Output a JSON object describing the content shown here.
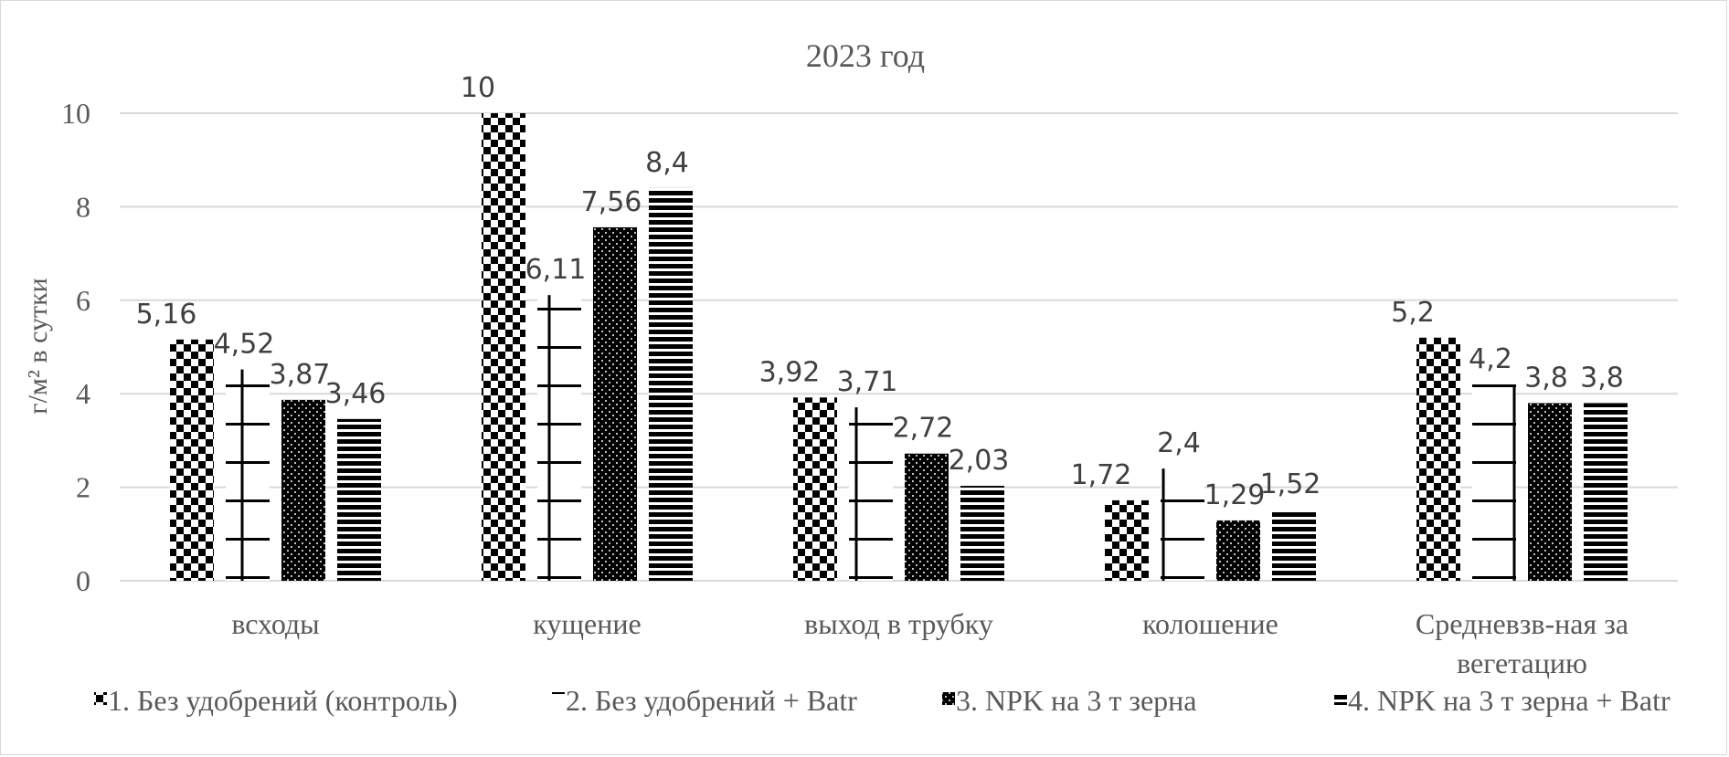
{
  "chart_data": {
    "type": "bar",
    "title": "2023 год",
    "ylabel": "г/м² в сутки",
    "xlabel": "",
    "ylim": [
      0,
      10
    ],
    "yticks": [
      0,
      2,
      4,
      6,
      8,
      10
    ],
    "ytick_labels": [
      "0",
      "2",
      "4",
      "6",
      "8",
      "10"
    ],
    "grid": true,
    "legend_position": "bottom",
    "categories": [
      "всходы",
      "кущение",
      "выход в трубку",
      "колошение",
      "Средневзв-ная за вегетацию"
    ],
    "category_lines": [
      [
        "всходы"
      ],
      [
        "кущение"
      ],
      [
        "выход в трубку"
      ],
      [
        "колошение"
      ],
      [
        "Средневзв-ная за",
        "вегетацию"
      ]
    ],
    "series": [
      {
        "name": "1. Без удобрений (контроль)",
        "values": [
          5.16,
          10,
          3.92,
          1.72,
          5.2
        ],
        "labels": [
          "5,16",
          "10",
          "3,92",
          "1,72",
          "5,2"
        ],
        "pattern": "checker"
      },
      {
        "name": "2. Без удобрений + Batr",
        "values": [
          4.52,
          6.11,
          3.71,
          2.4,
          4.2
        ],
        "labels": [
          "4,52",
          "6,11",
          "3,71",
          "2,4",
          "4,2"
        ],
        "pattern": "grid"
      },
      {
        "name": "3. NPK на 3 т зерна",
        "values": [
          3.87,
          7.56,
          2.72,
          1.29,
          3.8
        ],
        "labels": [
          "3,87",
          "7,56",
          "2,72",
          "1,29",
          "3,8"
        ],
        "pattern": "dots"
      },
      {
        "name": "4. NPK на 3 т зерна + Batr",
        "values": [
          3.46,
          8.4,
          2.03,
          1.52,
          3.8
        ],
        "labels": [
          "3,46",
          "8,4",
          "2,03",
          "1,52",
          "3,8"
        ],
        "pattern": "hlines"
      }
    ],
    "colors": {
      "bars": "#000000",
      "grid": "#d9d9d9",
      "text": "#595959",
      "labels": "#404040"
    }
  }
}
